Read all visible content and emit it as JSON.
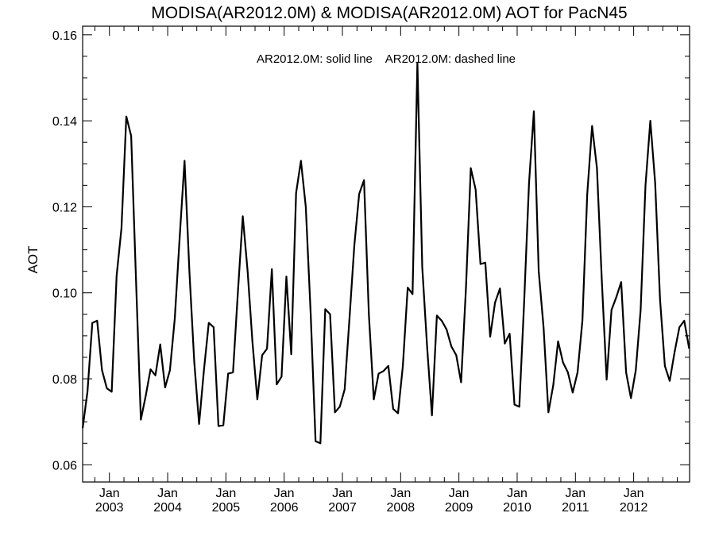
{
  "chart_data": {
    "type": "line",
    "title": "MODISA(AR2012.0M) & MODISA(AR2012.0M)  AOT for PacN45",
    "legend_text": "AR2012.0M: solid line    AR2012.0M: dashed line",
    "ylabel": "AOT",
    "xlabel": "",
    "ylim": [
      0.056,
      0.162
    ],
    "xlim": [
      2002.54,
      2012.96
    ],
    "yticks": [
      {
        "value": 0.06,
        "label": "0.06"
      },
      {
        "value": 0.08,
        "label": "0.08"
      },
      {
        "value": 0.1,
        "label": "0.10"
      },
      {
        "value": 0.12,
        "label": "0.12"
      },
      {
        "value": 0.14,
        "label": "0.14"
      },
      {
        "value": 0.16,
        "label": "0.16"
      }
    ],
    "xticks": [
      {
        "value": 2003,
        "month": "Jan",
        "year": "2003"
      },
      {
        "value": 2004,
        "month": "Jan",
        "year": "2004"
      },
      {
        "value": 2005,
        "month": "Jan",
        "year": "2005"
      },
      {
        "value": 2006,
        "month": "Jan",
        "year": "2006"
      },
      {
        "value": 2007,
        "month": "Jan",
        "year": "2007"
      },
      {
        "value": 2008,
        "month": "Jan",
        "year": "2008"
      },
      {
        "value": 2009,
        "month": "Jan",
        "year": "2009"
      },
      {
        "value": 2010,
        "month": "Jan",
        "year": "2010"
      },
      {
        "value": 2011,
        "month": "Jan",
        "year": "2011"
      },
      {
        "value": 2012,
        "month": "Jan",
        "year": "2012"
      }
    ],
    "series": [
      {
        "style": "solid",
        "color": "#000000",
        "x_start": 2002.54,
        "x_step": 0.0833,
        "values": [
          0.0685,
          0.077,
          0.093,
          0.0935,
          0.082,
          0.0778,
          0.077,
          0.104,
          0.115,
          0.141,
          0.1365,
          0.103,
          0.0705,
          0.076,
          0.0822,
          0.0808,
          0.088,
          0.078,
          0.082,
          0.094,
          0.113,
          0.1307,
          0.105,
          0.084,
          0.0695,
          0.082,
          0.093,
          0.092,
          0.069,
          0.0692,
          0.0812,
          0.0815,
          0.1,
          0.1178,
          0.105,
          0.0885,
          0.0752,
          0.0855,
          0.087,
          0.1055,
          0.0787,
          0.0805,
          0.1038,
          0.0857,
          0.1232,
          0.1307,
          0.12,
          0.095,
          0.0655,
          0.065,
          0.0962,
          0.095,
          0.0722,
          0.0735,
          0.0775,
          0.094,
          0.111,
          0.123,
          0.1262,
          0.095,
          0.0752,
          0.0812,
          0.0818,
          0.083,
          0.073,
          0.072,
          0.083,
          0.1012,
          0.0997,
          0.1535,
          0.106,
          0.0875,
          0.0715,
          0.0947,
          0.0935,
          0.0915,
          0.0875,
          0.0855,
          0.0792,
          0.101,
          0.129,
          0.124,
          0.1067,
          0.107,
          0.0898,
          0.0977,
          0.101,
          0.0882,
          0.0905,
          0.074,
          0.0735,
          0.098,
          0.1255,
          0.1422,
          0.105,
          0.092,
          0.0722,
          0.0785,
          0.0887,
          0.0838,
          0.0815,
          0.0768,
          0.0815,
          0.0935,
          0.123,
          0.1388,
          0.129,
          0.103,
          0.0798,
          0.096,
          0.099,
          0.1025,
          0.0815,
          0.0755,
          0.082,
          0.096,
          0.125,
          0.14,
          0.1255,
          0.0985,
          0.083,
          0.0795,
          0.0862,
          0.092,
          0.0935,
          0.087
        ]
      }
    ]
  }
}
